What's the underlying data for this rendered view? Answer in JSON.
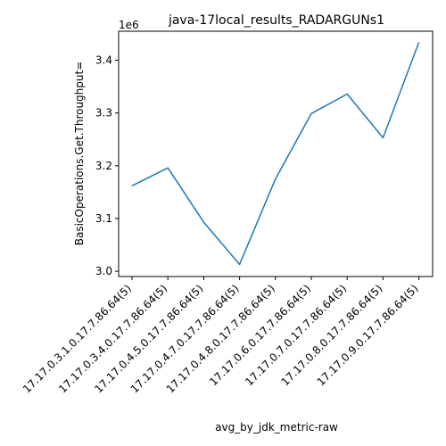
{
  "chart_data": {
    "type": "line",
    "title": "java-17local_results_RADARGUNs1",
    "xlabel": "avg_by_jdk_metric-raw",
    "ylabel": "BasicOperations.Get.Throughput=",
    "y_offset_label": "1e6",
    "categories": [
      "17.17.0.3.1.0.17.7.86.64(5)",
      "17.17.0.3.4.0.17.7.86.64(5)",
      "17.17.0.4.5.0.17.7.86.64(5)",
      "17.17.0.4.7.0.17.7.86.64(5)",
      "17.17.0.4.8.0.17.7.86.64(5)",
      "17.17.0.6.0.17.7.86.64(5)",
      "17.17.0.7.0.17.7.86.64(5)",
      "17.17.0.8.0.17.7.86.64(5)",
      "17.17.0.9.0.17.7.86.64(5)"
    ],
    "series": [
      {
        "values": [
          3162000,
          3196000,
          3093000,
          3013000,
          3175000,
          3299000,
          3336000,
          3253000,
          3434000
        ]
      }
    ],
    "yticks": [
      3000000,
      3100000,
      3200000,
      3300000,
      3400000
    ],
    "ytick_labels": [
      "3.0",
      "3.1",
      "3.2",
      "3.3",
      "3.4"
    ],
    "ylim": [
      2990000,
      3455000
    ],
    "grid": false,
    "line_color": "#1f77b4"
  }
}
